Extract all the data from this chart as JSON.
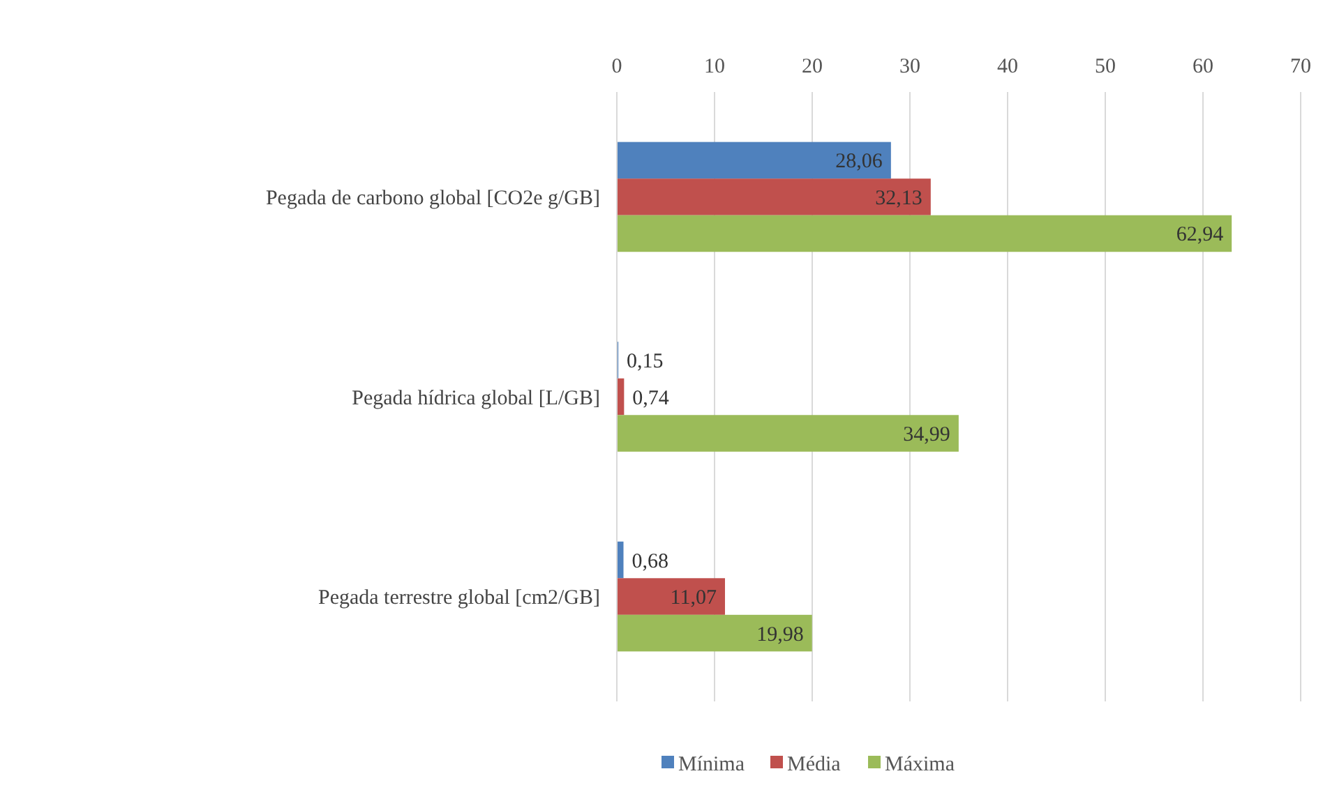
{
  "chart_data": {
    "type": "bar",
    "orientation": "horizontal",
    "categories": [
      "Pegada de carbono global [CO2e g/GB]",
      "Pegada hídrica global [L/GB]",
      "Pegada terrestre global [cm2/GB]"
    ],
    "series": [
      {
        "name": "Mínima",
        "color": "#4f81bd",
        "values": [
          28.06,
          0.15,
          0.68
        ],
        "value_labels": [
          "28,06",
          "0,15",
          "0,68"
        ]
      },
      {
        "name": "Média",
        "color": "#c0504d",
        "values": [
          32.13,
          0.74,
          11.07
        ],
        "value_labels": [
          "32,13",
          "0,74",
          "11,07"
        ]
      },
      {
        "name": "Máxima",
        "color": "#9bbb59",
        "values": [
          62.94,
          34.99,
          19.98
        ],
        "value_labels": [
          "62,94",
          "34,99",
          "19,98"
        ]
      }
    ],
    "xlim": [
      0,
      70
    ],
    "xticks": [
      0,
      10,
      20,
      30,
      40,
      50,
      60,
      70
    ],
    "grid": "x",
    "legend": "bottom"
  }
}
